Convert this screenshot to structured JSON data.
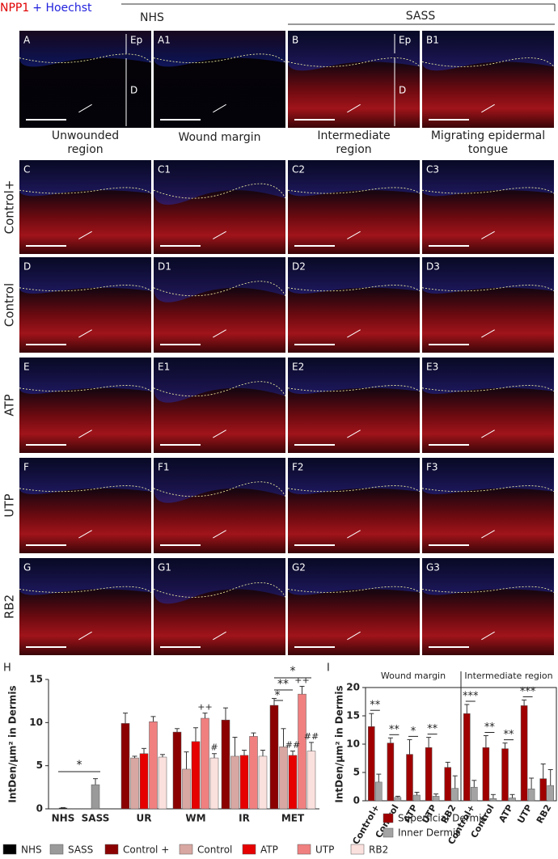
{
  "header": {
    "stain_red": "NPP1",
    "stain_blue": "+ Hoechst",
    "groups": [
      "NHS",
      "SASS"
    ]
  },
  "top_panels": [
    {
      "label": "A",
      "layers": [
        "Ep",
        "D"
      ]
    },
    {
      "label": "A1"
    },
    {
      "label": "B",
      "layers": [
        "Ep",
        "D"
      ]
    },
    {
      "label": "B1"
    }
  ],
  "column_labels": [
    [
      "Unwounded",
      "region"
    ],
    [
      "Wound margin"
    ],
    [
      "Intermediate",
      "region"
    ],
    [
      "Migrating epidermal",
      "tongue"
    ]
  ],
  "rows": [
    {
      "label": "Control+",
      "panels": [
        "C",
        "C1",
        "C2",
        "C3"
      ]
    },
    {
      "label": "Control",
      "panels": [
        "D",
        "D1",
        "D2",
        "D3"
      ]
    },
    {
      "label": "ATP",
      "panels": [
        "E",
        "E1",
        "E2",
        "E3"
      ]
    },
    {
      "label": "UTP",
      "panels": [
        "F",
        "F1",
        "F2",
        "F3"
      ]
    },
    {
      "label": "RB2",
      "panels": [
        "G",
        "G1",
        "G2",
        "G3"
      ]
    }
  ],
  "chart_data": [
    {
      "type": "bar",
      "panel": "H",
      "y_label": "IntDen/µm² in Dermis",
      "categories": [
        "NHS",
        "SASS",
        "UR",
        "WM",
        "IR",
        "MET"
      ],
      "ylim": [
        0,
        15
      ],
      "yticks": [
        0,
        5,
        10,
        15
      ],
      "series": [
        {
          "name": "NHS",
          "color": "#000000",
          "values": [
            0.1,
            null,
            null,
            null,
            null,
            null
          ],
          "errors": [
            0.05,
            null,
            null,
            null,
            null,
            null
          ]
        },
        {
          "name": "SASS",
          "color": "#9a9a9a",
          "values": [
            null,
            2.8,
            null,
            null,
            null,
            null
          ],
          "errors": [
            null,
            0.7,
            null,
            null,
            null,
            null
          ]
        },
        {
          "name": "Control +",
          "color": "#8b0000",
          "values": [
            null,
            null,
            9.9,
            8.9,
            10.3,
            12.0
          ],
          "errors": [
            null,
            null,
            1.2,
            0.4,
            1.4,
            0.8
          ]
        },
        {
          "name": "Control",
          "color": "#d8a7a2",
          "values": [
            null,
            null,
            5.9,
            4.6,
            6.1,
            7.2
          ],
          "errors": [
            null,
            null,
            0.2,
            2.0,
            2.2,
            2.1
          ]
        },
        {
          "name": "ATP",
          "color": "#e60000",
          "values": [
            null,
            null,
            6.4,
            7.8,
            6.2,
            6.2
          ],
          "errors": [
            null,
            null,
            0.6,
            1.6,
            0.6,
            0.5
          ]
        },
        {
          "name": "UTP",
          "color": "#f08080",
          "values": [
            null,
            null,
            10.1,
            10.5,
            8.4,
            13.3
          ],
          "errors": [
            null,
            null,
            0.6,
            0.6,
            0.4,
            0.9
          ]
        },
        {
          "name": "RB2",
          "color": "#fbe1de",
          "values": [
            null,
            null,
            6.0,
            5.9,
            6.1,
            6.7
          ],
          "errors": [
            null,
            null,
            0.3,
            0.5,
            0.7,
            1.0
          ]
        }
      ],
      "annotations": [
        {
          "text": "++",
          "series": "UTP",
          "category": "WM"
        },
        {
          "text": "#",
          "series": "RB2",
          "category": "WM"
        },
        {
          "text": "++",
          "series": "UTP",
          "category": "MET"
        },
        {
          "text": "##",
          "series": "ATP",
          "category": "MET"
        },
        {
          "text": "##",
          "series": "RB2",
          "category": "MET"
        }
      ],
      "brackets": [
        "*",
        "*",
        "**",
        "*"
      ]
    },
    {
      "type": "bar",
      "panel": "I",
      "y_label": "IntDen/µm² in Dermis",
      "groups": [
        "Wound margin",
        "Intermediate region"
      ],
      "categories": [
        "Control+",
        "Control",
        "ATP",
        "UTP",
        "RB2",
        "Control+",
        "Control",
        "ATP",
        "UTP",
        "RB2"
      ],
      "ylim": [
        0,
        20
      ],
      "yticks": [
        0,
        5,
        10,
        15,
        20
      ],
      "series": [
        {
          "name": "Superficial Dermis",
          "color": "#a00000",
          "values": [
            13.1,
            10.2,
            8.2,
            9.4,
            5.9,
            15.4,
            9.4,
            9.2,
            16.8,
            3.9
          ],
          "errors": [
            2.3,
            0.9,
            2.6,
            1.8,
            0.9,
            1.6,
            2.1,
            1.0,
            1.0,
            2.6
          ]
        },
        {
          "name": "Inner Dermis",
          "color": "#a3a3a3",
          "values": [
            3.3,
            0.6,
            1.0,
            0.8,
            2.2,
            2.4,
            0.4,
            0.5,
            2.1,
            2.7
          ],
          "errors": [
            1.4,
            0.2,
            0.5,
            0.4,
            2.2,
            1.2,
            0.7,
            0.6,
            1.9,
            2.8
          ]
        }
      ],
      "stars": [
        "**",
        "**",
        "*",
        "**",
        null,
        "***",
        "**",
        "**",
        "***",
        null
      ]
    }
  ]
}
